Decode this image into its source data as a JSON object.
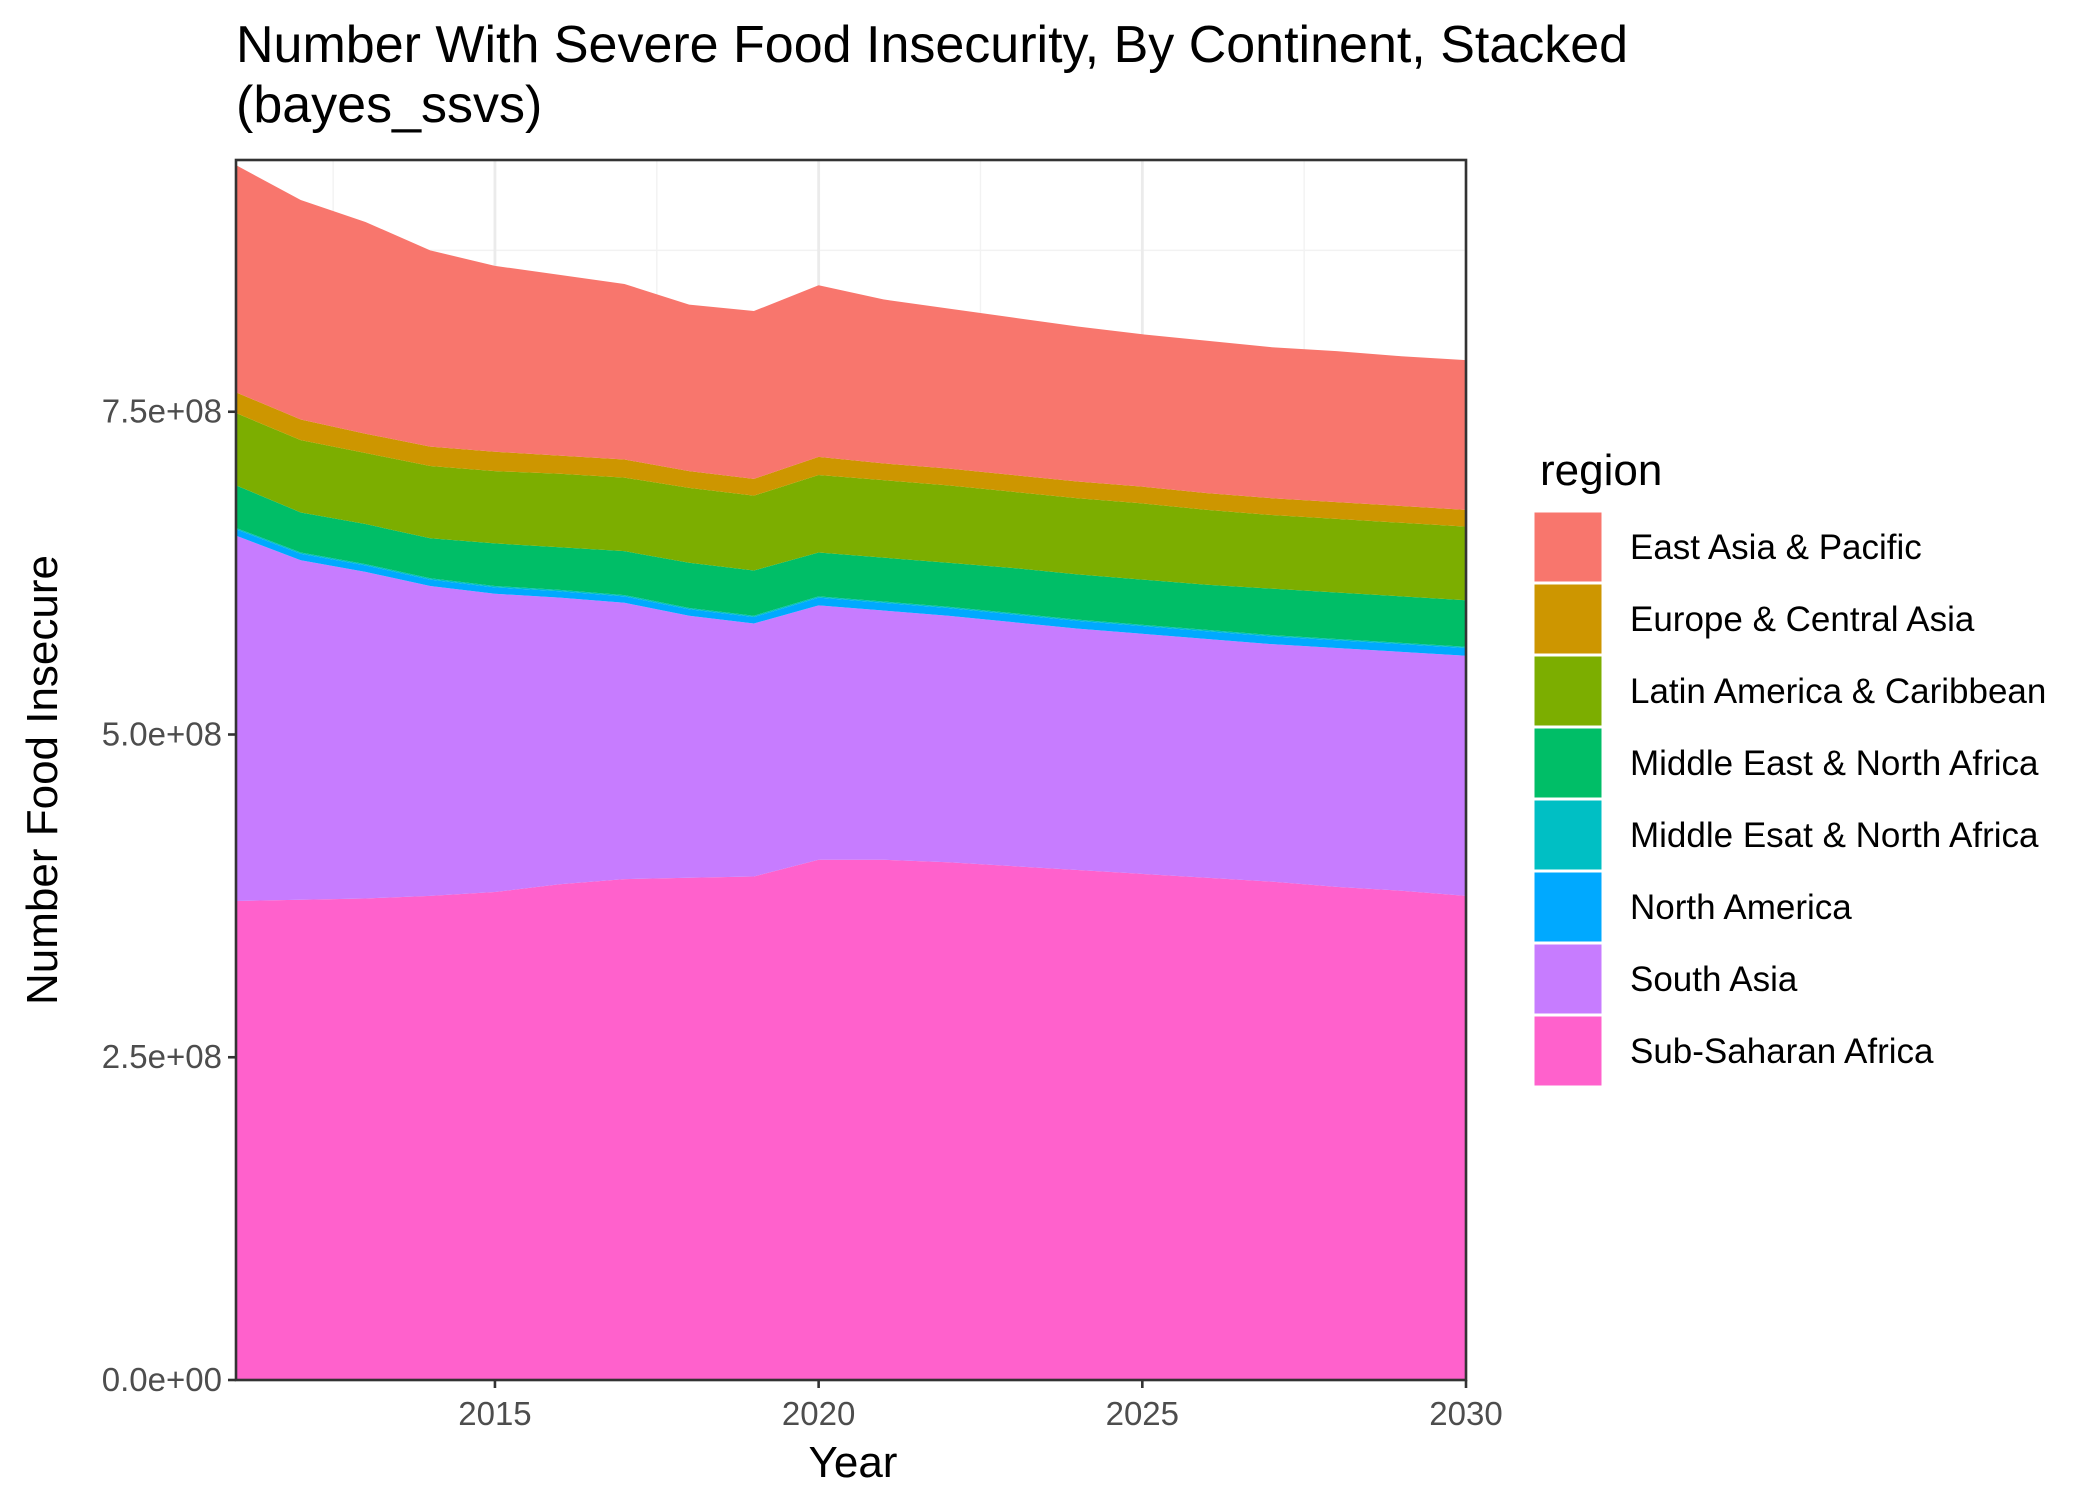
{
  "chart_data": {
    "type": "area",
    "stacked": true,
    "title": "Number With Severe Food Insecurity, By Continent, Stacked (bayes_ssvs)",
    "title_lines": [
      "Number With Severe Food Insecurity, By Continent, Stacked",
      "(bayes_ssvs)"
    ],
    "xlabel": "Year",
    "ylabel": "Number Food Insecure",
    "xlim": [
      2011,
      2030
    ],
    "ylim": [
      0,
      945000000
    ],
    "x_ticks": [
      2015,
      2020,
      2025,
      2030
    ],
    "y_ticks": [
      0,
      250000000,
      500000000,
      750000000
    ],
    "y_tick_labels": [
      "0.0e+00",
      "2.5e+08",
      "5.0e+08",
      "7.5e+08"
    ],
    "grid": true,
    "legend": {
      "title": "region",
      "position": "right"
    },
    "x": [
      2011,
      2012,
      2013,
      2014,
      2015,
      2016,
      2017,
      2018,
      2019,
      2020,
      2021,
      2022,
      2023,
      2024,
      2025,
      2026,
      2027,
      2028,
      2029,
      2030
    ],
    "series": [
      {
        "name": "Sub-Saharan Africa",
        "color": "#FF61CC",
        "values": [
          371000000,
          372000000,
          373000000,
          375000000,
          378000000,
          384000000,
          388000000,
          389000000,
          390000000,
          403000000,
          403000000,
          401000000,
          398000000,
          395000000,
          392000000,
          389000000,
          386000000,
          382000000,
          379000000,
          375000000
        ]
      },
      {
        "name": "South Asia",
        "color": "#C77CFF",
        "values": [
          283000000,
          263000000,
          253000000,
          240000000,
          231000000,
          222000000,
          214000000,
          203000000,
          196000000,
          197000000,
          193000000,
          191000000,
          189000000,
          187000000,
          186000000,
          185000000,
          184000000,
          185000000,
          185000000,
          186000000
        ]
      },
      {
        "name": "North America",
        "color": "#00A9FF",
        "values": [
          5000000,
          5000000,
          5000000,
          5000000,
          5000000,
          5000000,
          5000000,
          5000000,
          5000000,
          6000000,
          6000000,
          6000000,
          6000000,
          6000000,
          6000000,
          6000000,
          6000000,
          6000000,
          6000000,
          6000000
        ]
      },
      {
        "name": "Middle Esat & North Africa",
        "color": "#00BFC4",
        "values": [
          1000000,
          1000000,
          1000000,
          1000000,
          1000000,
          1000000,
          1000000,
          1000000,
          1000000,
          1000000,
          1000000,
          1000000,
          1000000,
          1000000,
          1000000,
          1000000,
          1000000,
          1000000,
          1000000,
          1000000
        ]
      },
      {
        "name": "Middle East & North Africa",
        "color": "#00BE67",
        "values": [
          33000000,
          31000000,
          31000000,
          31000000,
          33000000,
          33000000,
          34000000,
          35000000,
          35000000,
          34000000,
          34000000,
          34000000,
          35000000,
          35000000,
          35000000,
          35000000,
          36000000,
          36000000,
          36000000,
          36000000
        ]
      },
      {
        "name": "Latin America & Caribbean",
        "color": "#7CAE00",
        "values": [
          56000000,
          56000000,
          55000000,
          56000000,
          56000000,
          57000000,
          57000000,
          58000000,
          58000000,
          60000000,
          60000000,
          60000000,
          59000000,
          59000000,
          59000000,
          58000000,
          57000000,
          57000000,
          57000000,
          57000000
        ]
      },
      {
        "name": "Europe & Central Asia",
        "color": "#CD9600",
        "values": [
          16000000,
          16000000,
          15000000,
          15000000,
          15000000,
          14000000,
          14000000,
          13000000,
          13000000,
          14000000,
          13000000,
          13000000,
          13000000,
          13000000,
          13000000,
          13000000,
          13000000,
          13000000,
          13000000,
          13000000
        ]
      },
      {
        "name": "East Asia & Pacific",
        "color": "#F8766D",
        "values": [
          176000000,
          170000000,
          164000000,
          152000000,
          144000000,
          140000000,
          136000000,
          129000000,
          130000000,
          133000000,
          127000000,
          124000000,
          122000000,
          120000000,
          118000000,
          118000000,
          117000000,
          117000000,
          116000000,
          116000000
        ]
      }
    ],
    "legend_order": [
      "East Asia & Pacific",
      "Europe & Central Asia",
      "Latin America & Caribbean",
      "Middle East & North Africa",
      "Middle Esat & North Africa",
      "North America",
      "South Asia",
      "Sub-Saharan Africa"
    ]
  }
}
